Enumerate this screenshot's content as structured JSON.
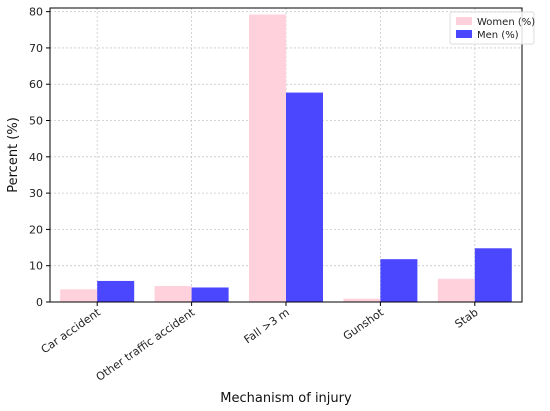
{
  "chart_data": {
    "type": "bar",
    "categories": [
      "Car accident",
      "Other traffic accident",
      "Fall >3 m",
      "Gunshot",
      "Stab"
    ],
    "series": [
      {
        "name": "Women (%)",
        "color": "#ffd1dc",
        "values": [
          3.5,
          4.4,
          79.2,
          0.9,
          6.4
        ]
      },
      {
        "name": "Men (%)",
        "color": "#4b47ff",
        "values": [
          5.8,
          4.0,
          57.7,
          11.8,
          14.8
        ]
      }
    ],
    "xlabel": "Mechanism of injury",
    "ylabel": "Percent (%)",
    "ylim": [
      0,
      81
    ],
    "yticks": [
      0,
      10,
      20,
      30,
      40,
      50,
      60,
      70,
      80
    ],
    "grid": true,
    "legend_position": "top-right"
  }
}
